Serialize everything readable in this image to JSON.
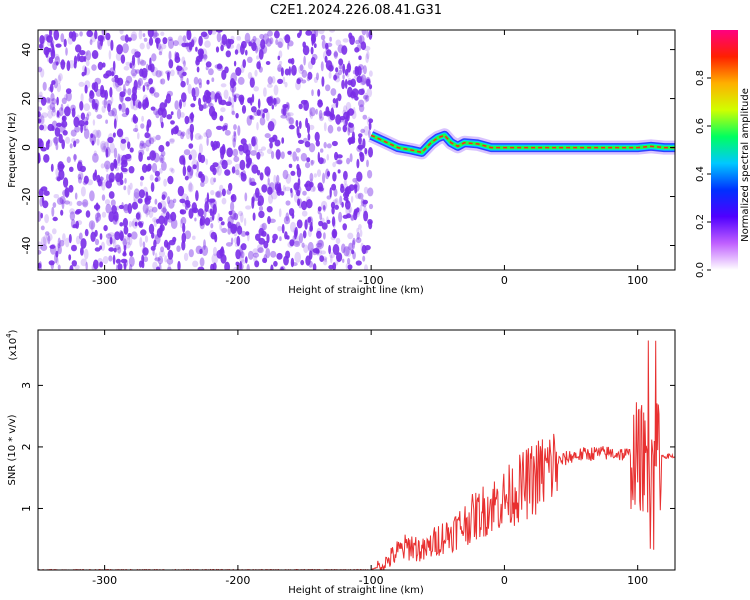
{
  "title": "C2E1.2024.226.08.41.G31",
  "chart_data": [
    {
      "type": "heatmap",
      "xlabel": "Height of straight line (km)",
      "ylabel": "Frequency (Hz)",
      "xlim": [
        -350,
        128
      ],
      "ylim": [
        -50,
        48
      ],
      "x_ticks": [
        -300,
        -200,
        -100,
        0,
        100
      ],
      "y_ticks": [
        -40,
        -20,
        0,
        20,
        40
      ],
      "colorbar": {
        "label": "Normalized spectral amplitude",
        "range": [
          0,
          1
        ],
        "ticks": [
          "0.0",
          "0.2",
          "0.4",
          "0.6",
          "0.8"
        ],
        "colormap": [
          "#ffffff",
          "#c060ff",
          "#5000ff",
          "#0030ff",
          "#00c8ff",
          "#00ff60",
          "#d0ff00",
          "#ffb000",
          "#ff2000",
          "#ff0080"
        ]
      },
      "noise_region_x": [
        -350,
        -100
      ],
      "noise_color": "#7a2ee8",
      "signal_trace": {
        "x": [
          -100,
          -90,
          -80,
          -70,
          -62,
          -55,
          -50,
          -45,
          -40,
          -35,
          -30,
          -20,
          -10,
          0,
          20,
          50,
          80,
          100,
          110,
          120,
          128
        ],
        "y": [
          5,
          2.5,
          0,
          -1,
          -2,
          2,
          4,
          5,
          2,
          0.5,
          2,
          1.5,
          0,
          0,
          0,
          0,
          0,
          0,
          0.5,
          0,
          0
        ]
      }
    },
    {
      "type": "line",
      "xlabel": "Height of straight line (km)",
      "ylabel": "SNR (10 * v/v)",
      "y_multiplier": "(x10",
      "y_multiplier_exp": "4",
      "y_multiplier_close": ")",
      "xlim": [
        -350,
        128
      ],
      "ylim": [
        0,
        3.9
      ],
      "x_ticks": [
        -300,
        -200,
        -100,
        0,
        100
      ],
      "y_ticks": [
        1,
        2,
        3
      ],
      "line_color": "#e83030",
      "series": [
        {
          "x": [
            -350,
            -100,
            -90,
            -80,
            -70,
            -60,
            -50,
            -40,
            -30,
            -20,
            -10,
            0,
            10,
            20,
            30,
            40,
            50,
            60,
            70,
            80,
            90,
            100,
            105,
            110,
            113,
            116,
            120,
            128
          ],
          "y": [
            0.0,
            0.0,
            0.1,
            0.3,
            0.4,
            0.3,
            0.5,
            0.6,
            0.75,
            0.9,
            1.05,
            1.15,
            1.3,
            1.45,
            1.6,
            1.75,
            1.85,
            1.88,
            1.9,
            1.9,
            1.88,
            1.85,
            1.8,
            1.85,
            1.82,
            1.85,
            1.85,
            1.85
          ]
        }
      ]
    }
  ]
}
